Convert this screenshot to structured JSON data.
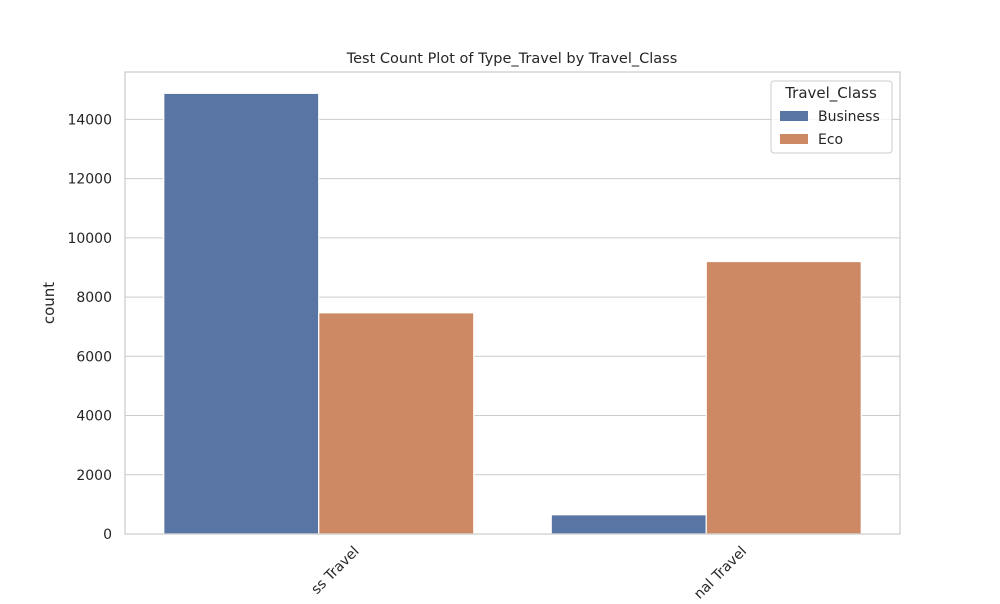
{
  "chart_data": {
    "type": "bar",
    "title": "Test Count Plot of Type_Travel by Travel_Class",
    "xlabel": "",
    "ylabel": "count",
    "categories": [
      "Business Travel",
      "Personal Travel"
    ],
    "visible_category_labels": [
      "ss Travel",
      "nal Travel"
    ],
    "series": [
      {
        "name": "Business",
        "values": [
          14880,
          650
        ],
        "color": "#5975a4"
      },
      {
        "name": "Eco",
        "values": [
          7470,
          9200
        ],
        "color": "#cc8963"
      }
    ],
    "ylim": [
      0,
      15600
    ],
    "yticks": [
      0,
      2000,
      4000,
      6000,
      8000,
      10000,
      12000,
      14000
    ],
    "grid": true,
    "legend": {
      "title": "Travel_Class",
      "position": "top-right"
    }
  }
}
